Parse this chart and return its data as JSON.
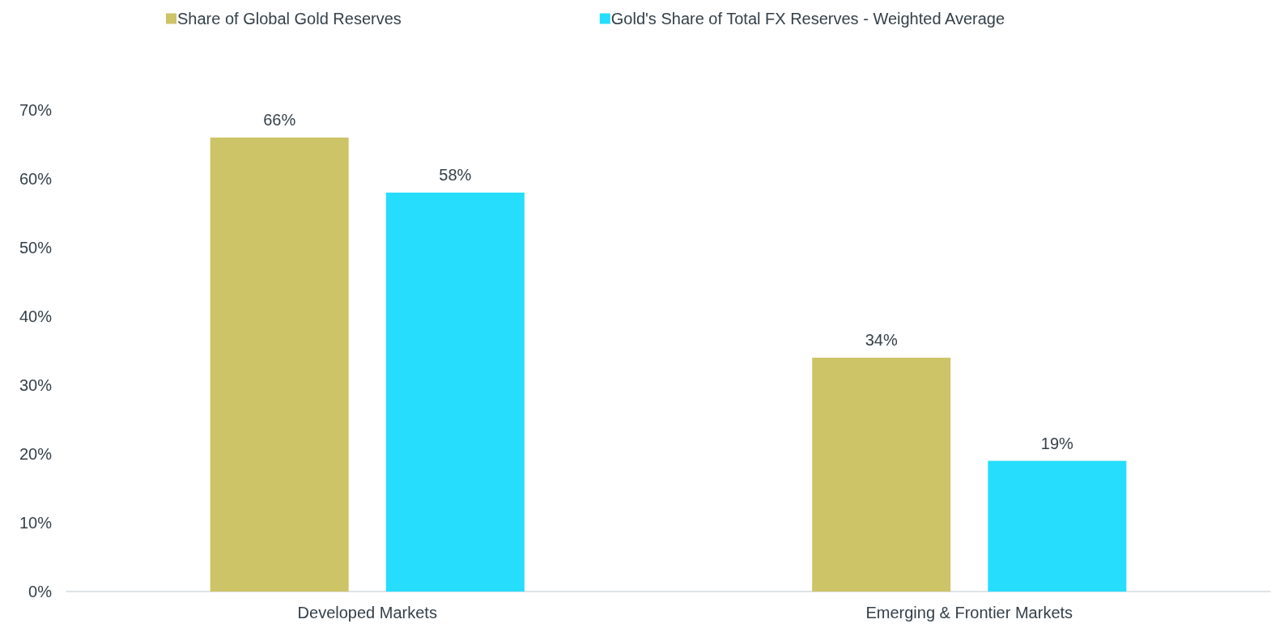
{
  "chart_data": {
    "type": "bar",
    "categories": [
      "Developed Markets",
      "Emerging & Frontier Markets"
    ],
    "series": [
      {
        "name": "Share of Global Gold Reserves",
        "color": "#cdc367",
        "values": [
          66,
          34
        ],
        "value_labels": [
          "66%",
          "34%"
        ]
      },
      {
        "name": "Gold's Share of Total FX Reserves - Weighted Average",
        "color": "#26ddfd",
        "values": [
          58,
          19
        ],
        "value_labels": [
          "58%",
          "19%"
        ]
      }
    ],
    "ylim": [
      0,
      70
    ],
    "yticks": [
      {
        "value": 0,
        "label": "0%"
      },
      {
        "value": 10,
        "label": "10%"
      },
      {
        "value": 20,
        "label": "20%"
      },
      {
        "value": 30,
        "label": "30%"
      },
      {
        "value": 40,
        "label": "40%"
      },
      {
        "value": 50,
        "label": "50%"
      },
      {
        "value": 60,
        "label": "60%"
      },
      {
        "value": 70,
        "label": "70%"
      }
    ],
    "grid": false,
    "legend": "top"
  }
}
